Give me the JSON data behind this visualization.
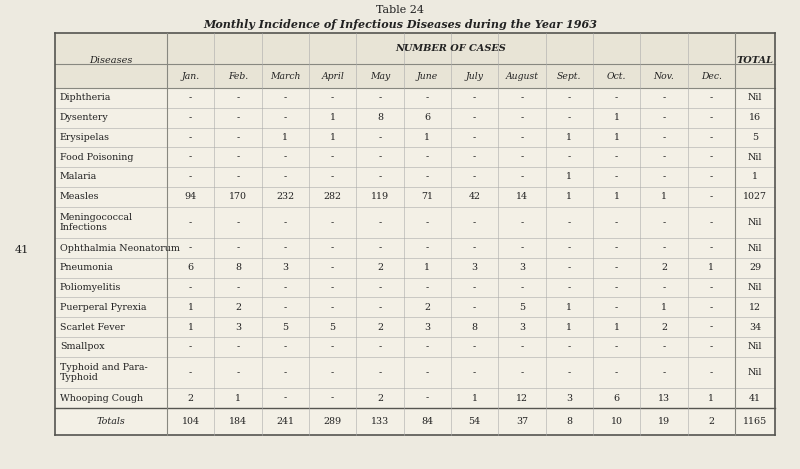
{
  "title_line1": "Table 24",
  "title_line2": "Monthly Incidence of Infectious Diseases during the Year 1963",
  "header_number_of_cases": "NUMBER OF CASES",
  "col_diseases": "Diseases",
  "col_total": "TOTAL",
  "months": [
    "Jan.",
    "Feb.",
    "March",
    "April",
    "May",
    "June",
    "July",
    "August",
    "Sept.",
    "Oct.",
    "Nov.",
    "Dec."
  ],
  "diseases": [
    "Diphtheria",
    "Dysentery",
    "Erysipelas",
    "Food Poisoning",
    "Malaria",
    "Measles",
    "Meningococcal\nInfections",
    "Ophthalmia Neonatorum",
    "Pneumonia",
    "Poliomyelitis",
    "Puerperal Pyrexia",
    "Scarlet Fever",
    "Smallpox",
    "Typhoid and Para-\nTyphoid",
    "Whooping Cough"
  ],
  "data": [
    [
      "-",
      "-",
      "-",
      "-",
      "-",
      "-",
      "-",
      "-",
      "-",
      "-",
      "-",
      "-",
      "Nil"
    ],
    [
      "-",
      "-",
      "-",
      "1",
      "8",
      "6",
      "-",
      "-",
      "-",
      "1",
      "-",
      "-",
      "16"
    ],
    [
      "-",
      "-",
      "1",
      "1",
      "-",
      "1",
      "-",
      "-",
      "1",
      "1",
      "-",
      "-",
      "5"
    ],
    [
      "-",
      "-",
      "-",
      "-",
      "-",
      "-",
      "-",
      "-",
      "-",
      "-",
      "-",
      "-",
      "Nil"
    ],
    [
      "-",
      "-",
      "-",
      "-",
      "-",
      "-",
      "-",
      "-",
      "1",
      "-",
      "-",
      "-",
      "1"
    ],
    [
      "94",
      "170",
      "232",
      "282",
      "119",
      "71",
      "42",
      "14",
      "1",
      "1",
      "1",
      "-",
      "1027"
    ],
    [
      "-",
      "-",
      "-",
      "-",
      "-",
      "-",
      "-",
      "-",
      "-",
      "-",
      "-",
      "-",
      "Nil"
    ],
    [
      "-",
      "-",
      "-",
      "-",
      "-",
      "-",
      "-",
      "-",
      "-",
      "-",
      "-",
      "-",
      "Nil"
    ],
    [
      "6",
      "8",
      "3",
      "-",
      "2",
      "1",
      "3",
      "3",
      "-",
      "-",
      "2",
      "1",
      "29"
    ],
    [
      "-",
      "-",
      "-",
      "-",
      "-",
      "-",
      "-",
      "-",
      "-",
      "-",
      "-",
      "-",
      "Nil"
    ],
    [
      "1",
      "2",
      "-",
      "-",
      "-",
      "2",
      "-",
      "5",
      "1",
      "-",
      "1",
      "-",
      "12"
    ],
    [
      "1",
      "3",
      "5",
      "5",
      "2",
      "3",
      "8",
      "3",
      "1",
      "1",
      "2",
      "-",
      "34"
    ],
    [
      "-",
      "-",
      "-",
      "-",
      "-",
      "-",
      "-",
      "-",
      "-",
      "-",
      "-",
      "-",
      "Nil"
    ],
    [
      "-",
      "-",
      "-",
      "-",
      "-",
      "-",
      "-",
      "-",
      "-",
      "-",
      "-",
      "-",
      "Nil"
    ],
    [
      "2",
      "1",
      "-",
      "-",
      "2",
      "-",
      "1",
      "12",
      "3",
      "6",
      "13",
      "1",
      "41"
    ]
  ],
  "totals_label": "Totals",
  "totals": [
    "104",
    "184",
    "241",
    "289",
    "133",
    "84",
    "54",
    "37",
    "8",
    "10",
    "19",
    "2",
    "1165"
  ],
  "bg_color": "#edeae0",
  "table_bg": "#f3f0e6",
  "side_label": "41",
  "line_color": "#888880",
  "thick_line_color": "#555550",
  "text_color": "#222222",
  "font_size_title1": 8,
  "font_size_title2": 8,
  "font_size_header": 7,
  "font_size_data": 6.8,
  "font_size_side": 8
}
